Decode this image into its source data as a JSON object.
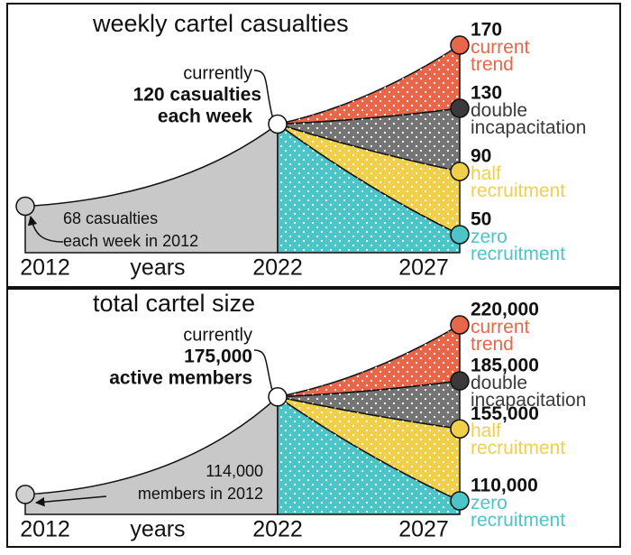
{
  "chart_data": [
    {
      "type": "scenario-area",
      "title": "weekly cartel casualties",
      "categories": [
        "2012",
        "2022",
        "2027"
      ],
      "xlabel": "years",
      "start": {
        "value": 68,
        "annotation": [
          "68 casualties",
          "each week in 2012"
        ]
      },
      "current": {
        "value": 120,
        "lead": "currently",
        "annotation": [
          "120 casualties",
          "each week"
        ]
      },
      "series": [
        {
          "name": "current trend",
          "color": "#e8674a",
          "value": 170
        },
        {
          "name": "double incapacitation",
          "color": "#3a3a3a",
          "value": 130
        },
        {
          "name": "half recruitment",
          "color": "#f0d04a",
          "value": 90
        },
        {
          "name": "zero recruitment",
          "color": "#4cc5c8",
          "value": 50
        }
      ]
    },
    {
      "type": "scenario-area",
      "title": "total cartel size",
      "categories": [
        "2012",
        "2022",
        "2027"
      ],
      "xlabel": "years",
      "start": {
        "value": 114000,
        "annotation": [
          "114,000",
          "members in 2012"
        ]
      },
      "current": {
        "value": 175000,
        "lead": "currently",
        "annotation": [
          "175,000",
          "active members"
        ]
      },
      "series": [
        {
          "name": "current trend",
          "color": "#e8674a",
          "value": 220000,
          "value_label": "220,000"
        },
        {
          "name": "double incapacitation",
          "color": "#3a3a3a",
          "value": 185000,
          "value_label": "185,000"
        },
        {
          "name": "half recruitment",
          "color": "#f0d04a",
          "value": 155000,
          "value_label": "155,000"
        },
        {
          "name": "zero recruitment",
          "color": "#4cc5c8",
          "value": 110000,
          "value_label": "110,000"
        }
      ]
    }
  ]
}
